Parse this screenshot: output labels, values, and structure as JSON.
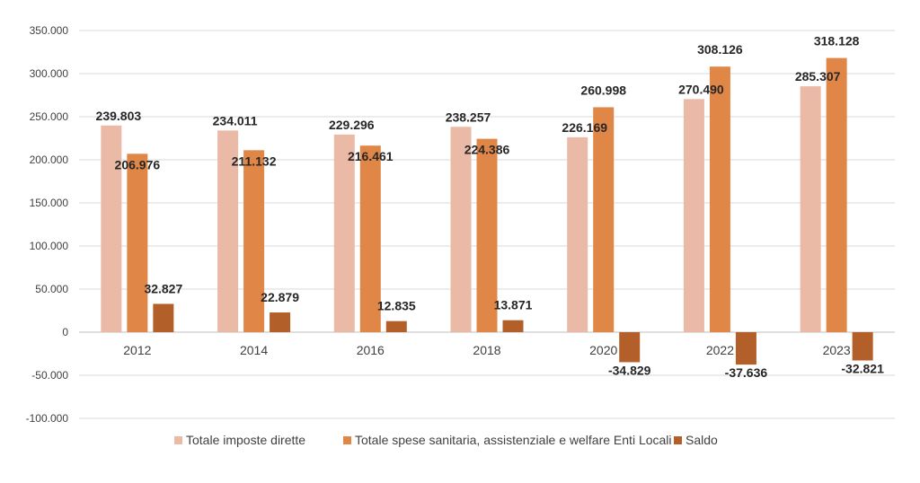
{
  "chart_data": {
    "type": "bar",
    "categories": [
      "2012",
      "2014",
      "2016",
      "2018",
      "2020",
      "2022",
      "2023"
    ],
    "series": [
      {
        "name": "Totale imposte dirette",
        "color": "#ebbaa6",
        "values": [
          239803,
          234011,
          229296,
          238257,
          226169,
          270490,
          285307
        ],
        "labels": [
          "239.803",
          "234.011",
          "229.296",
          "238.257",
          "226.169",
          "270.490",
          "285.307"
        ]
      },
      {
        "name": "Totale spese sanitaria, assistenziale e welfare Enti Locali",
        "color": "#e08747",
        "values": [
          206976,
          211132,
          216461,
          224386,
          260998,
          308126,
          318128
        ],
        "labels": [
          "206.976",
          "211.132",
          "216.461",
          "224.386",
          "260.998",
          "308.126",
          "318.128"
        ]
      },
      {
        "name": "Saldo",
        "color": "#b35f2a",
        "values": [
          32827,
          22879,
          12835,
          13871,
          -34829,
          -37636,
          -32821
        ],
        "labels": [
          "32.827",
          "22.879",
          "12.835",
          "13.871",
          "-34.829",
          "-37.636",
          "-32.821"
        ]
      }
    ],
    "ylim": [
      -100000,
      350000
    ],
    "yticks": [
      350000,
      300000,
      250000,
      200000,
      150000,
      100000,
      50000,
      0,
      -50000,
      -100000
    ],
    "ytick_labels": [
      "350.000",
      "300.000",
      "250.000",
      "200.000",
      "150.000",
      "100.000",
      "50.000",
      "0",
      "-50.000",
      "-100.000"
    ],
    "grid": true,
    "legend_position": "bottom",
    "title": "",
    "xlabel": "",
    "ylabel": ""
  }
}
